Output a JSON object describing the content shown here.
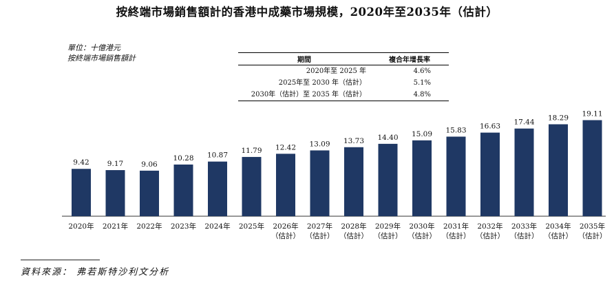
{
  "title": "按終端市場銷售額計的香港中成藥市場規模，2020年至2035年（估計）",
  "unit_lines": [
    "單位：十億港元",
    "按終端市場銷售額計"
  ],
  "cagr_table": {
    "headers": [
      "期間",
      "複合年增長率"
    ],
    "rows": [
      {
        "period": "2020年至 2025 年",
        "rate": "4.6%"
      },
      {
        "period": "2025年至 2030 年（估計）",
        "rate": "5.1%"
      },
      {
        "period": "2030年（估計）至 2035 年（估計）",
        "rate": "4.8%"
      }
    ]
  },
  "source": "資料來源： 弗若斯特沙利文分析",
  "colors": {
    "bar": "#1f3864"
  },
  "chart_data": {
    "type": "bar",
    "categories": [
      "2020年",
      "2021年",
      "2022年",
      "2023年",
      "2024年",
      "2025年",
      "2026年",
      "2027年",
      "2028年",
      "2029年",
      "2030年",
      "2031年",
      "2032年",
      "2033年",
      "2034年",
      "2035年"
    ],
    "category_notes": [
      "",
      "",
      "",
      "",
      "",
      "",
      "（估計）",
      "（估計）",
      "（估計）",
      "（估計）",
      "（估計）",
      "（估計）",
      "（估計）",
      "（估計）",
      "（估計）",
      "（估計）"
    ],
    "values": [
      9.42,
      9.17,
      9.06,
      10.28,
      10.87,
      11.79,
      12.42,
      13.09,
      13.73,
      14.4,
      15.09,
      15.83,
      16.63,
      17.44,
      18.29,
      19.11
    ],
    "value_labels": [
      "9.42",
      "9.17",
      "9.06",
      "10.28",
      "10.87",
      "11.79",
      "12.42",
      "13.09",
      "13.73",
      "14.40",
      "15.09",
      "15.83",
      "16.63",
      "17.44",
      "18.29",
      "19.11"
    ],
    "title": "按終端市場銷售額計的香港中成藥市場規模，2020年至2035年（估計）",
    "ylabel": "單位：十億港元",
    "ylim": [
      0,
      20
    ],
    "grid": false,
    "legend": "none"
  }
}
